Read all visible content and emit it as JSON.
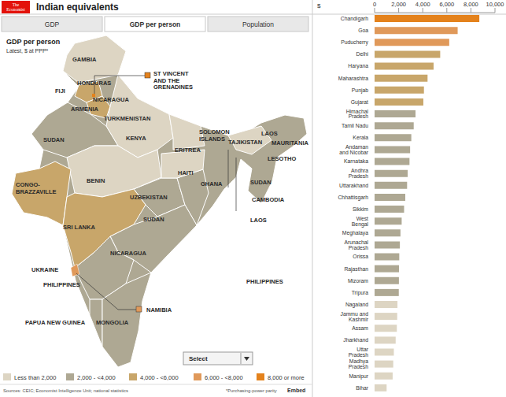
{
  "header": {
    "logo": "The Economist",
    "title": "Indian equivalents"
  },
  "tabs": [
    {
      "label": "GDP",
      "active": false
    },
    {
      "label": "GDP per person",
      "active": true
    },
    {
      "label": "Population",
      "active": false
    }
  ],
  "map": {
    "title": "GDP per person",
    "subtitle": "Latest, $ at PPP*",
    "select": "Select",
    "labels": [
      "GAMBIA",
      "HONDURAS",
      "FIJI",
      "ARMENIA",
      "NICARAGUA",
      "TURKMENISTAN",
      "ST VINCENT\nAND THE\nGRENADINES",
      "KENYA",
      "SUDAN",
      "ERITREA",
      "SOLOMON\nISLANDS",
      "TAJIKISTAN",
      "LAOS",
      "MAURITANIA",
      "LESOTHO",
      "HAITI",
      "GHANA",
      "BENIN",
      "CONGO-\nBRAZZAVILLE",
      "UZBEKISTAN",
      "SUDAN",
      "CAMBODIA",
      "SUDAN",
      "SRI LANKA",
      "LAOS",
      "NICARAGUA",
      "UKRAINE",
      "PHILIPPINES",
      "PHILIPPINES",
      "NAMIBIA",
      "PAPUA NEW GUINEA",
      "MONGOLIA"
    ]
  },
  "legend": [
    {
      "label": "Less than 2,000",
      "color": "#ddd5c3"
    },
    {
      "label": "2,000 - <4,000",
      "color": "#aea893"
    },
    {
      "label": "4,000 - <6,000",
      "color": "#c8a66a"
    },
    {
      "label": "6,000 - <8,000",
      "color": "#e0995a"
    },
    {
      "label": "8,000 or more",
      "color": "#e4821c"
    }
  ],
  "footer": {
    "sources": "Sources: CEIC; Economist Intelligence Unit; national statistics",
    "note": "*Purchasing-power parity",
    "embed": "Embed"
  },
  "chart_data": {
    "type": "bar",
    "orientation": "horizontal",
    "xlabel": "$",
    "categories": [
      "Chandigarh",
      "Goa",
      "Puducherry",
      "Delhi",
      "Haryana",
      "Maharashtra",
      "Punjab",
      "Gujarat",
      "Himachal Pradesh",
      "Tamil Nadu",
      "Kerala",
      "Andaman and Nicobar",
      "Karnataka",
      "Andhra Pradesh",
      "Uttarakhand",
      "Chhattisgarh",
      "Sikkim",
      "West Bengal",
      "Meghalaya",
      "Arunachal Pradesh",
      "Orissa",
      "Rajasthan",
      "Mizoram",
      "Tripura",
      "Nagaland",
      "Jammu and Kashmir",
      "Assam",
      "Jharkhand",
      "Uttar Pradesh",
      "Madhya Pradesh",
      "Manipur",
      "Bihar"
    ],
    "values": [
      8700,
      6900,
      6200,
      5450,
      4900,
      4400,
      4100,
      4050,
      3400,
      3250,
      3050,
      2950,
      2900,
      2750,
      2700,
      2550,
      2450,
      2250,
      2150,
      2100,
      2050,
      2030,
      2020,
      2010,
      1900,
      1880,
      1850,
      1750,
      1600,
      1550,
      1500,
      1000
    ],
    "colors": [
      "#e4821c",
      "#e0995a",
      "#e0995a",
      "#c8a66a",
      "#c8a66a",
      "#c8a66a",
      "#c8a66a",
      "#c8a66a",
      "#aea893",
      "#aea893",
      "#aea893",
      "#aea893",
      "#aea893",
      "#aea893",
      "#aea893",
      "#aea893",
      "#aea893",
      "#aea893",
      "#aea893",
      "#aea893",
      "#aea893",
      "#aea893",
      "#aea893",
      "#aea893",
      "#ddd5c3",
      "#ddd5c3",
      "#ddd5c3",
      "#ddd5c3",
      "#ddd5c3",
      "#ddd5c3",
      "#ddd5c3",
      "#ddd5c3"
    ],
    "xlim": [
      0,
      10000
    ],
    "xticks": [
      0,
      {
        "value": 2000,
        "label": "2,000"
      },
      {
        "value": 4000,
        "label": "4,000"
      },
      {
        "value": 6000,
        "label": "6,000"
      },
      {
        "value": 8000,
        "label": "8,000"
      },
      {
        "value": 10000,
        "label": "10,000"
      }
    ],
    "grid": false
  }
}
